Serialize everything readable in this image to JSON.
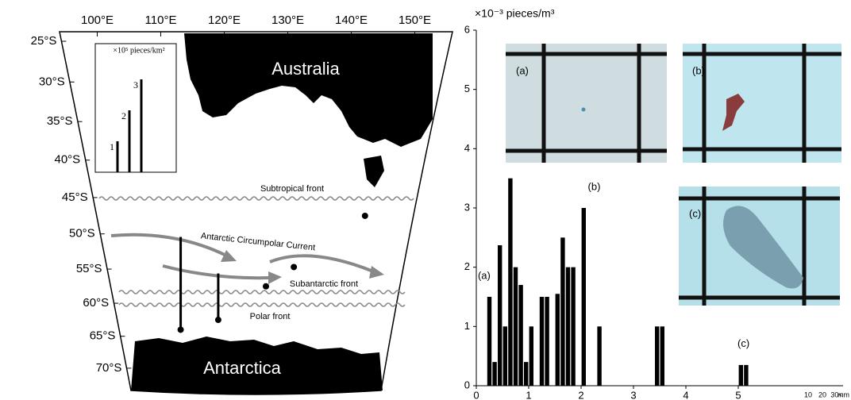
{
  "map": {
    "lon_ticks": [
      {
        "value": 100,
        "label": "100°E"
      },
      {
        "value": 110,
        "label": "110°E"
      },
      {
        "value": 120,
        "label": "120°E"
      },
      {
        "value": 130,
        "label": "130°E"
      },
      {
        "value": 140,
        "label": "140°E"
      },
      {
        "value": 150,
        "label": "150°E"
      }
    ],
    "lat_ticks": [
      {
        "value": 25,
        "label": "25°S"
      },
      {
        "value": 30,
        "label": "30°S"
      },
      {
        "value": 35,
        "label": "35°S"
      },
      {
        "value": 40,
        "label": "40°S"
      },
      {
        "value": 45,
        "label": "45°S"
      },
      {
        "value": 50,
        "label": "50°S"
      },
      {
        "value": 55,
        "label": "55°S"
      },
      {
        "value": 60,
        "label": "60°S"
      },
      {
        "value": 65,
        "label": "65°S"
      },
      {
        "value": 70,
        "label": "70°S"
      }
    ],
    "labels": {
      "australia": "Australia",
      "antarctica": "Antarctica",
      "subtropical_front": "Subtropical front",
      "current": "Antarctic Circumpolar Current",
      "subantarctic_front": "Subantarctic front",
      "polar_front": "Polar front"
    },
    "inset": {
      "unit": "×10⁵ pieces/km²",
      "values": [
        1,
        2,
        3
      ]
    },
    "stations": [
      {
        "lon": 108,
        "lat": 64,
        "value": 3
      },
      {
        "lon": 116.6,
        "lat": 62.5,
        "value": 1.5
      },
      {
        "lon": 146,
        "lat": 47.5,
        "value": 0
      },
      {
        "lon": 132.8,
        "lat": 54.7,
        "value": 0
      },
      {
        "lon": 127.1,
        "lat": 57.5,
        "value": 0
      }
    ]
  },
  "chart_data": {
    "type": "histogram",
    "y_label": "×10⁻³ pieces/m³",
    "bins": [
      0,
      0.1,
      0.2,
      0.3,
      0.4,
      0.5,
      0.6,
      0.7,
      0.8,
      0.9,
      1.0,
      1.1,
      1.2,
      1.3,
      1.4,
      1.5,
      1.6,
      1.7,
      1.8,
      1.9,
      2.0,
      2.1,
      2.2,
      2.3,
      2.4,
      2.5,
      2.6,
      2.7,
      2.8,
      2.9,
      3.0,
      3.1,
      3.2,
      3.3,
      3.4,
      3.5,
      3.6,
      3.7,
      3.8,
      3.9,
      4.0,
      4.1,
      4.2,
      4.3,
      4.4,
      4.5,
      4.6,
      4.7,
      4.8,
      4.9,
      5.0,
      5.1,
      5.2
    ],
    "values": [
      0,
      0,
      1.5,
      0.4,
      2.37,
      1.0,
      3.5,
      2.0,
      1.7,
      0.4,
      1.0,
      0,
      1.5,
      1.5,
      0,
      1.55,
      2.5,
      2.0,
      2.0,
      0,
      3.0,
      0,
      0,
      1.0,
      0,
      0,
      0,
      0,
      0,
      0,
      0,
      0,
      0,
      0,
      1.0,
      1.0,
      0,
      0,
      0,
      0,
      0,
      0,
      0,
      0,
      0,
      0,
      0,
      0,
      0,
      0,
      0.35,
      0.35
    ],
    "color": "#000000",
    "xlim": [
      0,
      7
    ],
    "xticks": [
      0,
      1,
      2,
      3,
      4,
      5
    ],
    "xtick_extra_labels": [
      "10",
      "20",
      "30<"
    ],
    "x_unit": "mm",
    "ylim": [
      0,
      6
    ],
    "yticks": [
      0,
      1,
      2,
      3,
      4,
      5,
      6
    ],
    "annotations": [
      {
        "text": "(a)",
        "x": 0.15,
        "y": 1.85
      },
      {
        "text": "(b)",
        "x": 2.25,
        "y": 3.35
      },
      {
        "text": "(c)",
        "x": 5.1,
        "y": 0.7
      }
    ],
    "photos": [
      "(a)",
      "(b)",
      "(c)"
    ]
  }
}
